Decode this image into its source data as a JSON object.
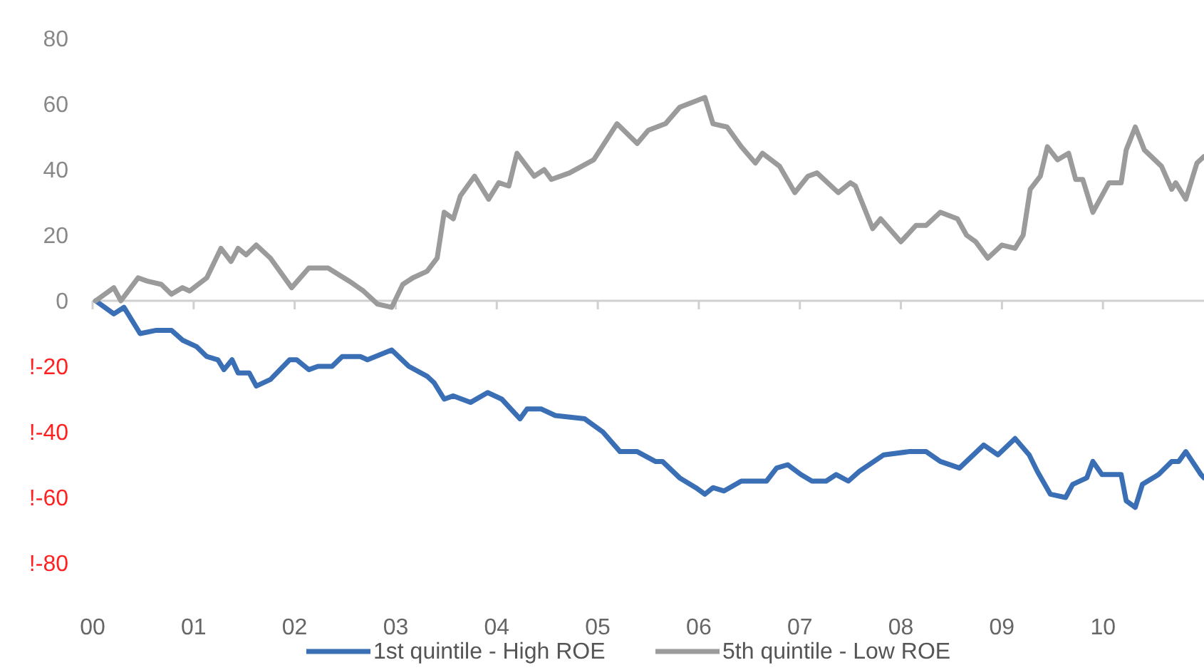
{
  "chart_data": {
    "type": "line",
    "xlim": [
      2000,
      2011
    ],
    "xticks": [
      {
        "value": 2000,
        "label": "00"
      },
      {
        "value": 2001,
        "label": "01"
      },
      {
        "value": 2002,
        "label": "02"
      },
      {
        "value": 2003,
        "label": "03"
      },
      {
        "value": 2004,
        "label": "04"
      },
      {
        "value": 2005,
        "label": "05"
      },
      {
        "value": 2006,
        "label": "06"
      },
      {
        "value": 2007,
        "label": "07"
      },
      {
        "value": 2008,
        "label": "08"
      },
      {
        "value": 2009,
        "label": "09"
      },
      {
        "value": 2010,
        "label": "10"
      }
    ],
    "ylim": [
      -80,
      80
    ],
    "yticks": [
      {
        "value": -80,
        "label": "!-80"
      },
      {
        "value": -60,
        "label": "!-60"
      },
      {
        "value": -40,
        "label": "!-40"
      },
      {
        "value": -20,
        "label": "!-20"
      },
      0,
      20,
      40,
      60,
      80
    ],
    "grid": false,
    "ref_lines": [
      {
        "axis": "y",
        "value": 0,
        "color": "#d0d0d0"
      }
    ],
    "legend": "bottom",
    "marker": "none",
    "line_style": "solid",
    "series": [
      {
        "name": "1st quintile - High ROE",
        "color": "#3a6fb5",
        "x": [
          2000.03,
          2000.21,
          2000.31,
          2000.47,
          2000.63,
          2000.78,
          2000.89,
          2001.03,
          2001.13,
          2001.24,
          2001.3,
          2001.38,
          2001.44,
          2001.55,
          2001.62,
          2001.76,
          2001.95,
          2002.02,
          2002.14,
          2002.23,
          2002.37,
          2002.47,
          2002.65,
          2002.72,
          2002.96,
          2003.13,
          2003.31,
          2003.38,
          2003.48,
          2003.57,
          2003.74,
          2003.91,
          2004.05,
          2004.23,
          2004.3,
          2004.44,
          2004.58,
          2004.87,
          2005.05,
          2005.22,
          2005.39,
          2005.57,
          2005.64,
          2005.81,
          2005.97,
          2006.06,
          2006.14,
          2006.25,
          2006.42,
          2006.56,
          2006.67,
          2006.77,
          2006.88,
          2007.01,
          2007.12,
          2007.26,
          2007.36,
          2007.48,
          2007.59,
          2007.83,
          2008.08,
          2008.25,
          2008.39,
          2008.58,
          2008.82,
          2008.96,
          2009.13,
          2009.27,
          2009.35,
          2009.48,
          2009.63,
          2009.7,
          2009.84,
          2009.9,
          2009.99,
          2010.18,
          2010.23,
          2010.32,
          2010.39,
          2010.55,
          2010.68,
          2010.75,
          2010.82,
          2010.97,
          2011.0
        ],
        "values": [
          0,
          -4,
          -2,
          -10,
          -9,
          -9,
          -12,
          -14,
          -17,
          -18,
          -21,
          -18,
          -22,
          -22,
          -26,
          -24,
          -18,
          -18,
          -21,
          -20,
          -20,
          -17,
          -17,
          -18,
          -15,
          -20,
          -23,
          -25,
          -30,
          -29,
          -31,
          -28,
          -30,
          -36,
          -33,
          -33,
          -35,
          -36,
          -40,
          -46,
          -46,
          -49,
          -49,
          -54,
          -57,
          -59,
          -57,
          -58,
          -55,
          -55,
          -55,
          -51,
          -50,
          -53,
          -55,
          -55,
          -53,
          -55,
          -52,
          -47,
          -46,
          -46,
          -49,
          -51,
          -44,
          -47,
          -42,
          -47,
          -52,
          -59,
          -60,
          -56,
          -54,
          -49,
          -53,
          -53,
          -61,
          -63,
          -56,
          -53,
          -49,
          -49,
          -46,
          -53,
          -54
        ]
      },
      {
        "name": "5th quintile - Low ROE",
        "color": "#9b9b9b",
        "x": [
          2000.03,
          2000.21,
          2000.28,
          2000.45,
          2000.54,
          2000.68,
          2000.78,
          2000.89,
          2000.96,
          2001.13,
          2001.27,
          2001.37,
          2001.44,
          2001.52,
          2001.62,
          2001.76,
          2001.97,
          2002.14,
          2002.33,
          2002.54,
          2002.68,
          2002.82,
          2002.96,
          2003.07,
          2003.17,
          2003.31,
          2003.41,
          2003.48,
          2003.57,
          2003.64,
          2003.78,
          2003.92,
          2004.02,
          2004.12,
          2004.2,
          2004.37,
          2004.47,
          2004.54,
          2004.72,
          2004.96,
          2005.19,
          2005.39,
          2005.5,
          2005.67,
          2005.81,
          2006.06,
          2006.14,
          2006.28,
          2006.42,
          2006.56,
          2006.63,
          2006.8,
          2006.95,
          2007.08,
          2007.17,
          2007.38,
          2007.5,
          2007.55,
          2007.72,
          2007.8,
          2008.0,
          2008.15,
          2008.25,
          2008.39,
          2008.56,
          2008.65,
          2008.74,
          2008.86,
          2009.0,
          2009.13,
          2009.21,
          2009.28,
          2009.38,
          2009.45,
          2009.55,
          2009.66,
          2009.73,
          2009.8,
          2009.9,
          2010.06,
          2010.18,
          2010.23,
          2010.32,
          2010.41,
          2010.58,
          2010.68,
          2010.72,
          2010.82,
          2010.93,
          2011.0
        ],
        "values": [
          0,
          4,
          0,
          7,
          6,
          5,
          2,
          4,
          3,
          7,
          16,
          12,
          16,
          14,
          17,
          13,
          4,
          10,
          10,
          6,
          3,
          -1,
          -2,
          5,
          7,
          9,
          13,
          27,
          25,
          32,
          38,
          31,
          36,
          35,
          45,
          38,
          40,
          37,
          39,
          43,
          54,
          48,
          52,
          54,
          59,
          62,
          54,
          53,
          47,
          42,
          45,
          41,
          33,
          38,
          39,
          33,
          36,
          35,
          22,
          25,
          18,
          23,
          23,
          27,
          25,
          20,
          18,
          13,
          17,
          16,
          20,
          34,
          38,
          47,
          43,
          45,
          37,
          37,
          27,
          36,
          36,
          46,
          53,
          46,
          41,
          34,
          36,
          31,
          42,
          44
        ]
      }
    ]
  }
}
